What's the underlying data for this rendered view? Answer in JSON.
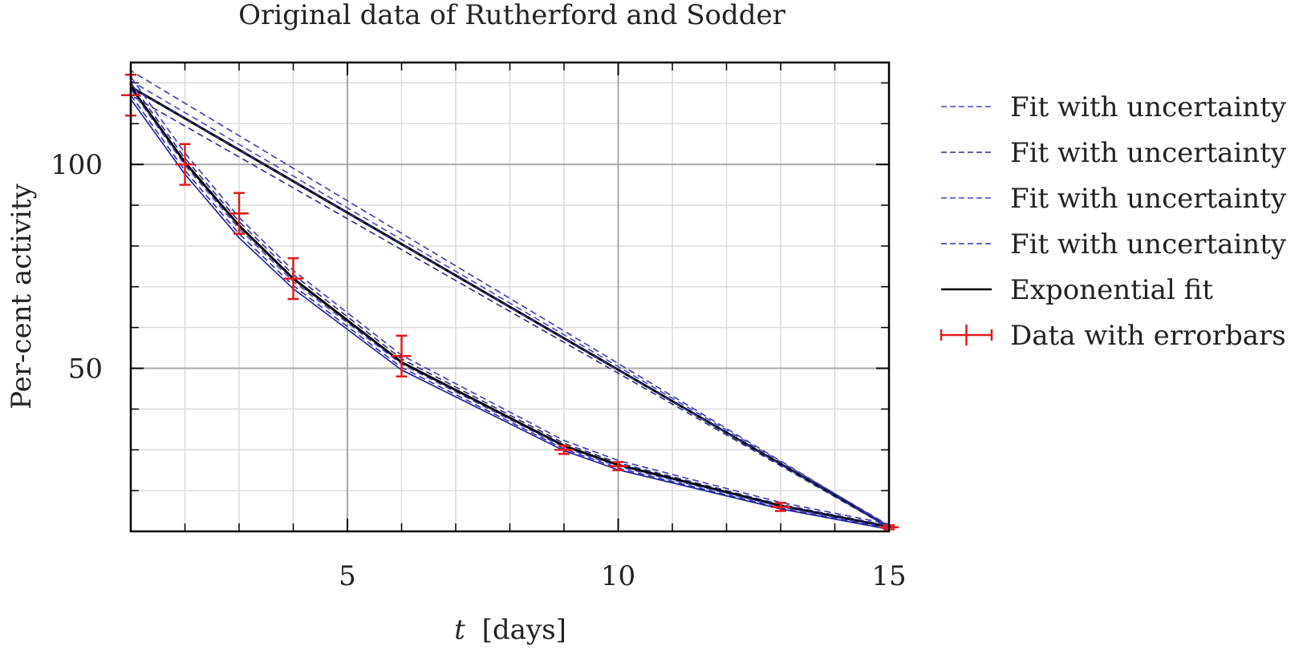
{
  "chart_data": {
    "type": "line",
    "title": "Original data of Rutherford and Sodder",
    "xlabel_var": "t",
    "xlabel_unit": "[days]",
    "ylabel": "Per-cent activity",
    "xlim": [
      1,
      15
    ],
    "ylim": [
      10,
      125
    ],
    "x_major_ticks": [
      5,
      10,
      15
    ],
    "x_minor_step": 1,
    "y_major_ticks": [
      50,
      100
    ],
    "y_minor_step": 10,
    "grid": true,
    "legend_position": "right",
    "series": [
      {
        "name": "Data with errorbars",
        "kind": "errorbar",
        "color": "#e31a1c",
        "points": [
          {
            "x": 1,
            "y": 117,
            "err": 5
          },
          {
            "x": 2,
            "y": 100,
            "err": 5
          },
          {
            "x": 3,
            "y": 88,
            "err": 5
          },
          {
            "x": 4,
            "y": 72,
            "err": 5
          },
          {
            "x": 6,
            "y": 53,
            "err": 5
          },
          {
            "x": 9,
            "y": 30,
            "err": 1
          },
          {
            "x": 10,
            "y": 26,
            "err": 1
          },
          {
            "x": 13,
            "y": 16,
            "err": 1
          },
          {
            "x": 15,
            "y": 11,
            "err": 0.5
          }
        ]
      },
      {
        "name": "Exponential fit",
        "kind": "line",
        "color": "#000000",
        "dash": false,
        "x": [
          1,
          2,
          3,
          4,
          6,
          9,
          10,
          13,
          15,
          15,
          1
        ],
        "y": [
          119,
          100.5,
          85,
          72,
          51.5,
          31,
          26.3,
          16.3,
          11.1,
          11.1,
          119
        ]
      },
      {
        "name": "Fit with uncertainty",
        "kind": "line",
        "color": "#3b3bb5",
        "dash": true,
        "x": [
          1,
          2,
          3,
          4,
          6,
          9,
          10,
          13,
          15,
          15,
          1
        ],
        "y": [
          121.5,
          102.8,
          87,
          74,
          53.2,
          32.3,
          27.4,
          17.1,
          11.8,
          11.3,
          123
        ]
      },
      {
        "name": "Fit with uncertainty",
        "kind": "line",
        "color": "#2a2a8c",
        "dash": true,
        "x": [
          1,
          2,
          3,
          4,
          6,
          9,
          10,
          13,
          15,
          15,
          1
        ],
        "y": [
          120,
          101.5,
          86,
          73,
          52.3,
          31.6,
          26.8,
          16.6,
          11.4,
          10.9,
          117
        ]
      },
      {
        "name": "Fit with uncertainty",
        "kind": "line",
        "color": "#4646c8",
        "dash": true,
        "x": [
          1,
          2,
          3,
          4,
          6,
          9,
          10,
          13,
          15,
          15,
          1
        ],
        "y": [
          118.5,
          99.8,
          84.2,
          71.3,
          51,
          30.6,
          25.9,
          16,
          10.9,
          11.5,
          120.5
        ]
      },
      {
        "name": "Fit with uncertainty",
        "kind": "line",
        "color": "#3030a0",
        "dash": true,
        "x": [
          1,
          2,
          3,
          4,
          6,
          9,
          10,
          13,
          15,
          15,
          1
        ],
        "y": [
          117,
          98.5,
          83,
          70.3,
          50.2,
          30.2,
          25.5,
          15.7,
          10.7,
          11,
          119
        ]
      },
      {
        "name": "",
        "kind": "line",
        "color": "#1c1c9c",
        "dash": false,
        "x": [
          1,
          2,
          3,
          4,
          6,
          9,
          10,
          13,
          15
        ],
        "y": [
          116,
          97.6,
          82,
          69.5,
          49.6,
          29.8,
          25.1,
          15.5,
          10.5
        ]
      }
    ],
    "legend": [
      {
        "label": "Fit with uncertainty",
        "color": "#4646c8",
        "style": "dashed"
      },
      {
        "label": "Fit with uncertainty",
        "color": "#2a2a8c",
        "style": "dashed"
      },
      {
        "label": "Fit with uncertainty",
        "color": "#4646c8",
        "style": "dashed"
      },
      {
        "label": "Fit with uncertainty",
        "color": "#3030a0",
        "style": "dashed"
      },
      {
        "label": "Exponential fit",
        "color": "#000000",
        "style": "solid"
      },
      {
        "label": "Data with errorbars",
        "color": "#e31a1c",
        "style": "errorbar"
      }
    ]
  }
}
